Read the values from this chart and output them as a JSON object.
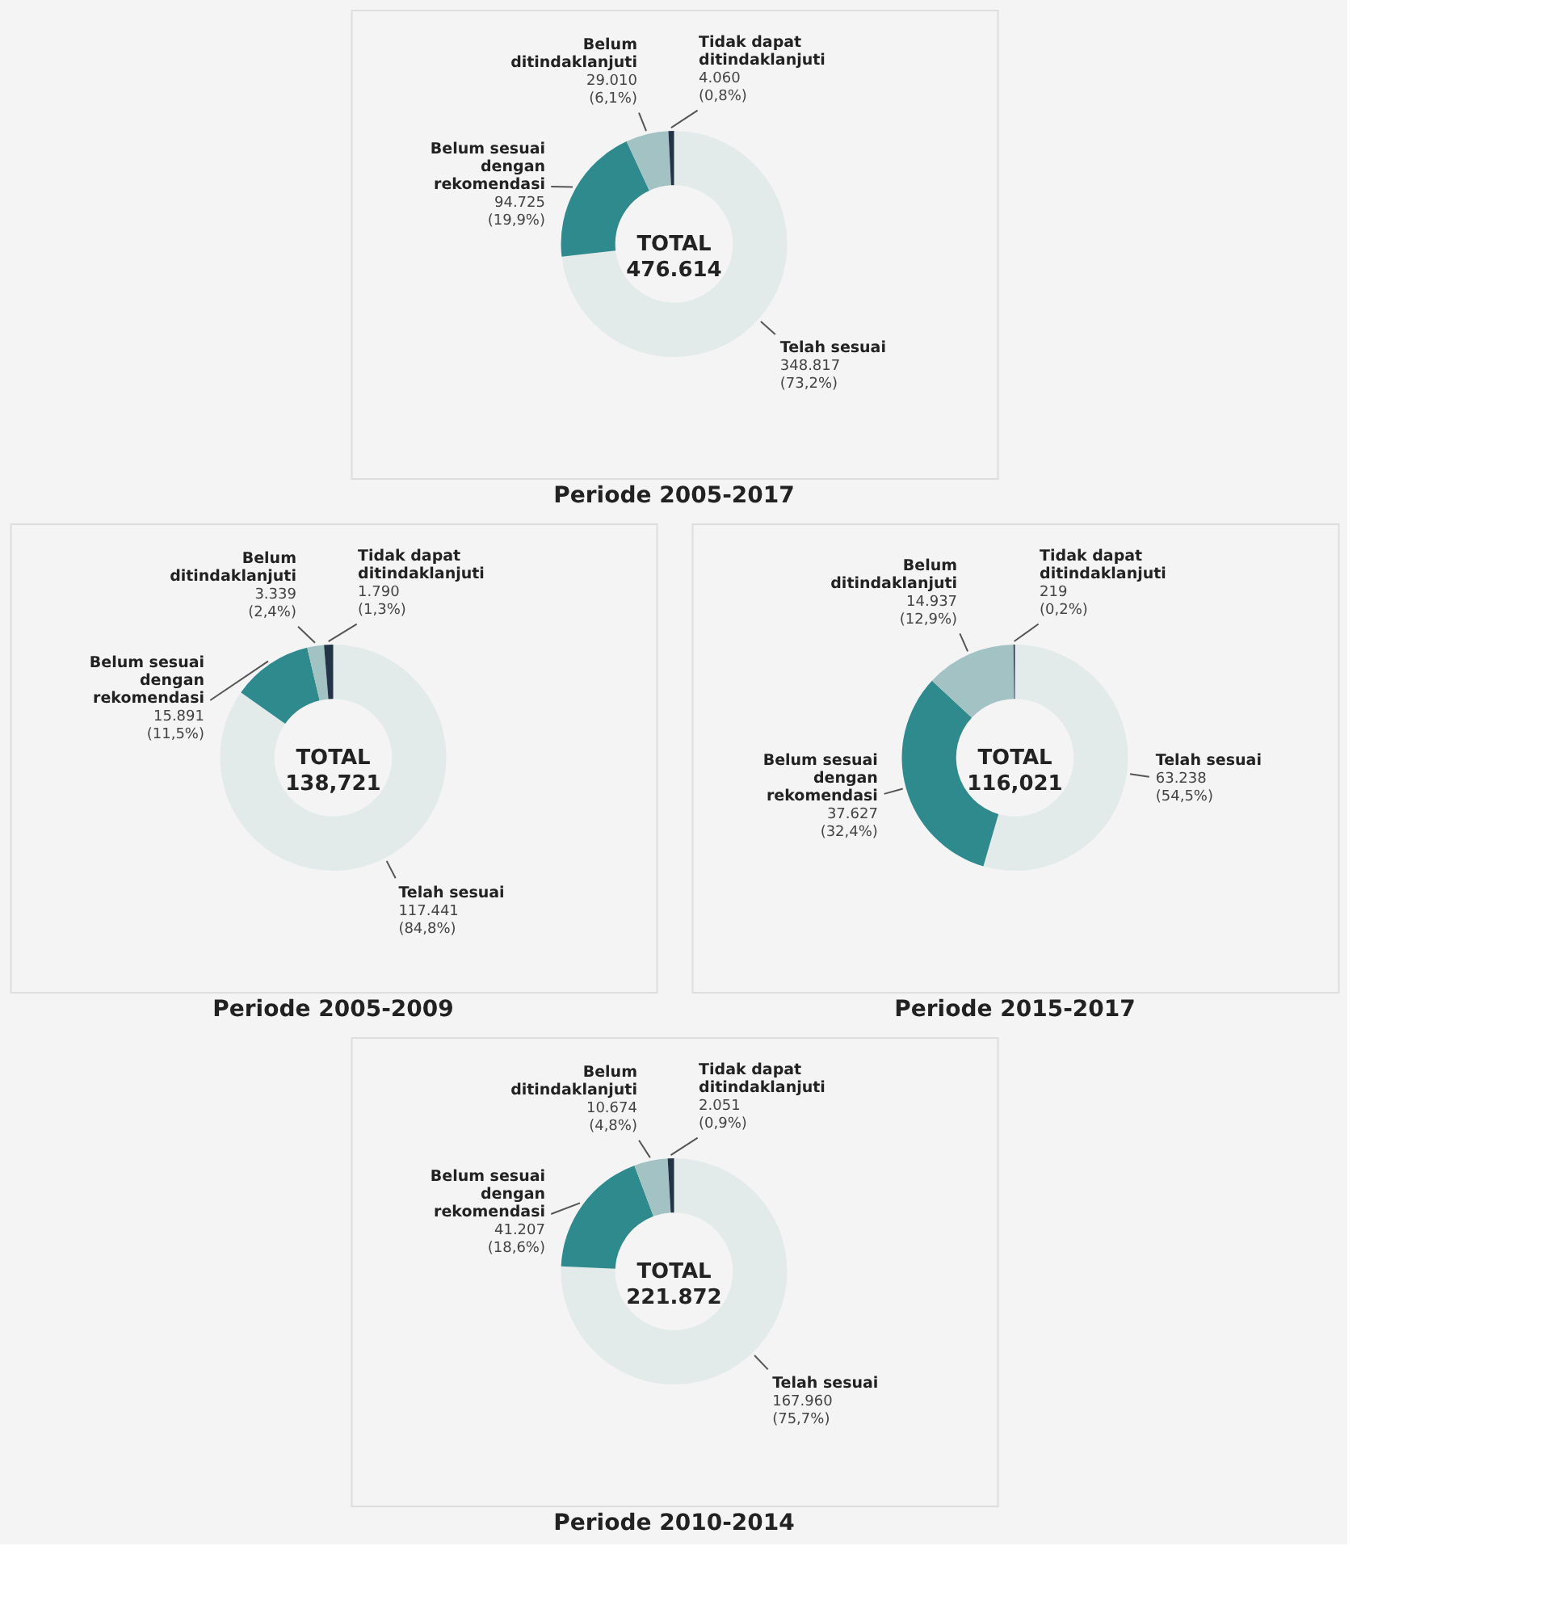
{
  "chart_data": [
    {
      "type": "donut",
      "title": "Periode 2005-2017",
      "categories": [
        "Telah sesuai",
        "Belum sesuai dengan rekomendasi",
        "Belum ditindaklanjuti",
        "Tidak dapat ditindaklanjuti"
      ],
      "values": [
        73.2,
        19.9,
        6.1,
        0.8
      ],
      "colors": [
        "#e2eaea",
        "#2f8a8e",
        "#a3c2c3",
        "#243447"
      ],
      "value_labels": [
        "348.817 (73,2%)",
        "94.725 (19,9%)",
        "29.010 (6,1%)",
        "4.060 (0,8%)"
      ],
      "annotations": [
        "TOTAL 476.614"
      ]
    },
    {
      "type": "donut",
      "title": "Periode 2005-2009",
      "categories": [
        "Telah sesuai",
        "Belum sesuai dengan rekomendasi",
        "Belum ditindaklanjuti",
        "Tidak dapat ditindaklanjuti"
      ],
      "values": [
        84.8,
        11.5,
        2.4,
        1.3
      ],
      "colors": [
        "#e2eaea",
        "#2f8a8e",
        "#a3c2c3",
        "#243447"
      ],
      "value_labels": [
        "117.441 (84,8%)",
        "15.891 (11,5%)",
        "3.339 (2,4%)",
        "1.790 (1,3%)"
      ],
      "annotations": [
        "TOTAL 138,721"
      ]
    },
    {
      "type": "donut",
      "title": "Periode 2015-2017",
      "categories": [
        "Telah sesuai",
        "Belum sesuai dengan rekomendasi",
        "Belum ditindaklanjuti",
        "Tidak dapat ditindaklanjuti"
      ],
      "values": [
        54.5,
        32.4,
        12.9,
        0.2
      ],
      "colors": [
        "#e2eaea",
        "#2f8a8e",
        "#a3c2c3",
        "#243447"
      ],
      "value_labels": [
        "63.238 (54,5%)",
        "37.627 (32,4%)",
        "14.937 (12,9%)",
        "219 (0,2%)"
      ],
      "annotations": [
        "TOTAL 116,021"
      ]
    },
    {
      "type": "donut",
      "title": "Periode 2010-2014",
      "categories": [
        "Telah sesuai",
        "Belum sesuai dengan rekomendasi",
        "Belum ditindaklanjuti",
        "Tidak dapat ditindaklanjuti"
      ],
      "values": [
        75.7,
        18.6,
        4.8,
        0.9
      ],
      "colors": [
        "#e2eaea",
        "#2f8a8e",
        "#a3c2c3",
        "#243447"
      ],
      "value_labels": [
        "167.960 (75,7%)",
        "41.207 (18,6%)",
        "10.674 (4,8%)",
        "2.051 (0,9%)"
      ],
      "annotations": [
        "TOTAL 221.872"
      ]
    }
  ]
}
